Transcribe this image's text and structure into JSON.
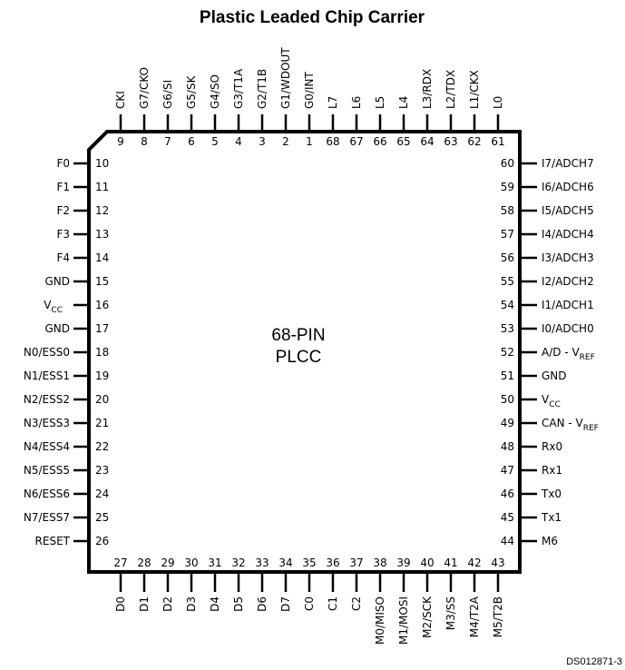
{
  "title": "Plastic Leaded Chip Carrier",
  "center_label": [
    "68-PIN",
    "PLCC"
  ],
  "doc_ref": "DS012871-3",
  "top_pins": [
    {
      "num": "9",
      "name": "CKI"
    },
    {
      "num": "8",
      "name": "G7/CKO"
    },
    {
      "num": "7",
      "name": "G6/SI"
    },
    {
      "num": "6",
      "name": "G5/SK"
    },
    {
      "num": "5",
      "name": "G4/SO"
    },
    {
      "num": "4",
      "name": "G3/T1A"
    },
    {
      "num": "3",
      "name": "G2/T1B"
    },
    {
      "num": "2",
      "name": "G1/WDOUT"
    },
    {
      "num": "1",
      "name": "G0/INT"
    },
    {
      "num": "68",
      "name": "L7"
    },
    {
      "num": "67",
      "name": "L6"
    },
    {
      "num": "66",
      "name": "L5"
    },
    {
      "num": "65",
      "name": "L4"
    },
    {
      "num": "64",
      "name": "L3/RDX"
    },
    {
      "num": "63",
      "name": "L2/TDX"
    },
    {
      "num": "62",
      "name": "L1/CKX"
    },
    {
      "num": "61",
      "name": "L0"
    }
  ],
  "left_pins": [
    {
      "num": "10",
      "name": "F0"
    },
    {
      "num": "11",
      "name": "F1"
    },
    {
      "num": "12",
      "name": "F2"
    },
    {
      "num": "13",
      "name": "F3"
    },
    {
      "num": "14",
      "name": "F4"
    },
    {
      "num": "15",
      "name": "GND"
    },
    {
      "num": "16",
      "name": "V",
      "sub": "CC"
    },
    {
      "num": "17",
      "name": "GND"
    },
    {
      "num": "18",
      "name": "N0/ESS0"
    },
    {
      "num": "19",
      "name": "N1/ESS1"
    },
    {
      "num": "20",
      "name": "N2/ESS2"
    },
    {
      "num": "21",
      "name": "N3/ESS3"
    },
    {
      "num": "22",
      "name": "N4/ESS4"
    },
    {
      "num": "23",
      "name": "N5/ESS5"
    },
    {
      "num": "24",
      "name": "N6/ESS6"
    },
    {
      "num": "25",
      "name": "N7/ESS7"
    },
    {
      "num": "26",
      "name": "RESET"
    }
  ],
  "right_pins": [
    {
      "num": "60",
      "name": "I7/ADCH7"
    },
    {
      "num": "59",
      "name": "I6/ADCH6"
    },
    {
      "num": "58",
      "name": "I5/ADCH5"
    },
    {
      "num": "57",
      "name": "I4/ADCH4"
    },
    {
      "num": "56",
      "name": "I3/ADCH3"
    },
    {
      "num": "55",
      "name": "I2/ADCH2"
    },
    {
      "num": "54",
      "name": "I1/ADCH1"
    },
    {
      "num": "53",
      "name": "I0/ADCH0"
    },
    {
      "num": "52",
      "name": "A/D - V",
      "sub": "REF"
    },
    {
      "num": "51",
      "name": "GND"
    },
    {
      "num": "50",
      "name": "V",
      "sub": "CC"
    },
    {
      "num": "49",
      "name": "CAN - V",
      "sub": "REF"
    },
    {
      "num": "48",
      "name": "Rx0"
    },
    {
      "num": "47",
      "name": "Rx1"
    },
    {
      "num": "46",
      "name": "Tx0"
    },
    {
      "num": "45",
      "name": "Tx1"
    },
    {
      "num": "44",
      "name": "M6"
    }
  ],
  "bottom_pins": [
    {
      "num": "27",
      "name": "D0"
    },
    {
      "num": "28",
      "name": "D1"
    },
    {
      "num": "29",
      "name": "D2"
    },
    {
      "num": "30",
      "name": "D3"
    },
    {
      "num": "31",
      "name": "D4"
    },
    {
      "num": "32",
      "name": "D5"
    },
    {
      "num": "33",
      "name": "D6"
    },
    {
      "num": "34",
      "name": "D7"
    },
    {
      "num": "35",
      "name": "C0"
    },
    {
      "num": "36",
      "name": "C1"
    },
    {
      "num": "37",
      "name": "C2"
    },
    {
      "num": "38",
      "name": "M0/MISO"
    },
    {
      "num": "39",
      "name": "M1/MOSI"
    },
    {
      "num": "40",
      "name": "M2/SCK"
    },
    {
      "num": "41",
      "name": "M3/SS"
    },
    {
      "num": "42",
      "name": "M4/T2A"
    },
    {
      "num": "43",
      "name": "M5/T2B"
    }
  ]
}
